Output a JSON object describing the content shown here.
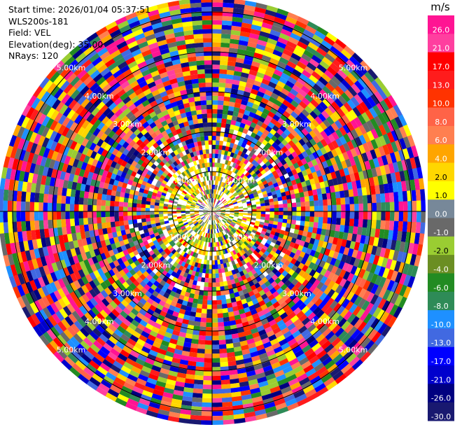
{
  "info": {
    "start_time": "Start time: 2026/01/04 05:37:51",
    "station": "WLS200s-181",
    "field": "Field: VEL",
    "elevation": "Elevation(deg): 35.00",
    "nrays": "NRays: 120"
  },
  "chart_data": {
    "type": "heatmap",
    "projection": "polar",
    "field": "VEL",
    "n_rays": 120,
    "range_rings_km": [
      1.0,
      2.0,
      3.0,
      4.0,
      5.0
    ],
    "range_ring_labels": [
      "1.00km",
      "2.00km",
      "3.00km",
      "4.00km",
      "5.00km"
    ],
    "colorbar": {
      "unit": "m/s",
      "ticks": [
        "26.0",
        "21.0",
        "17.0",
        "13.0",
        "10.0",
        "8.0",
        "6.0",
        "4.0",
        "2.0",
        "1.0",
        "0.0",
        "-1.0",
        "-2.0",
        "-4.0",
        "-6.0",
        "-8.0",
        "-10.0",
        "-13.0",
        "-17.0",
        "-21.0",
        "-26.0",
        "-30.0"
      ],
      "colors": [
        "#ff1493",
        "#ff3f9f",
        "#ff0000",
        "#ff1c1c",
        "#ff3300",
        "#ff6347",
        "#ff7f50",
        "#ffa500",
        "#ffd700",
        "#ffff00",
        "#778899",
        "#696969",
        "#9acd32",
        "#6b8e23",
        "#228b22",
        "#2e8b57",
        "#1e90ff",
        "#4169e1",
        "#0000ff",
        "#0000cd",
        "#000080",
        "#191970"
      ]
    }
  }
}
